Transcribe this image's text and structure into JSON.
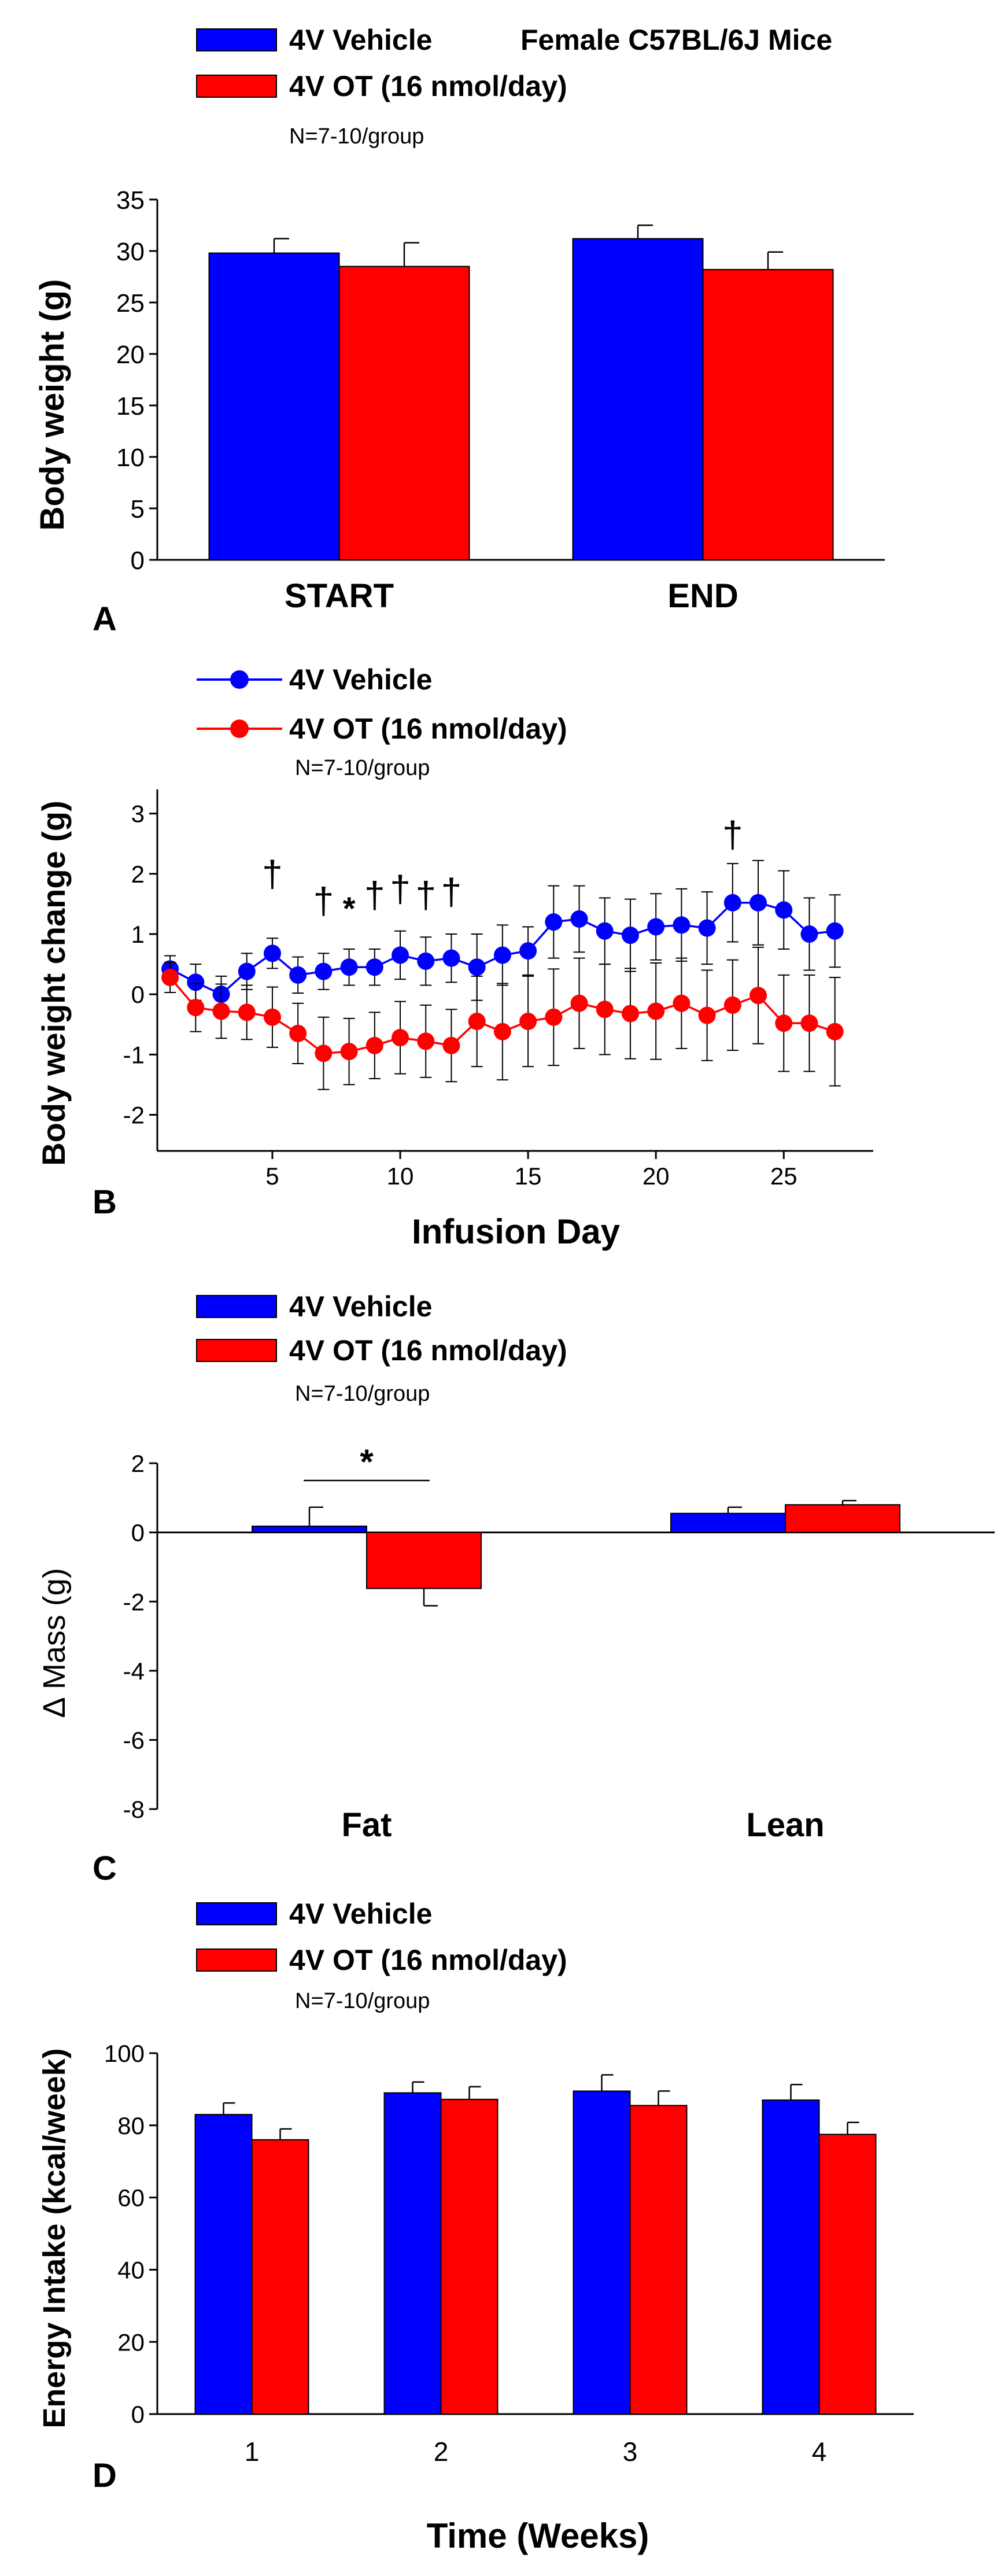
{
  "colors": {
    "vehicle": "#0000FF",
    "ot": "#FF0000",
    "ink": "#000000"
  },
  "chart_data": [
    {
      "id": "A",
      "type": "bar",
      "panel_label": "A",
      "legend": [
        "4V Vehicle",
        "4V OT (16 nmol/day)"
      ],
      "title": "Female C57BL/6J Mice",
      "subtitle": "N=7-10/group",
      "ylabel": "Body weight (g)",
      "xlabel": "",
      "ylim": [
        0,
        35
      ],
      "yticks": [
        0,
        5,
        10,
        15,
        20,
        25,
        30,
        35
      ],
      "categories": [
        "START",
        "END"
      ],
      "series": [
        {
          "name": "4V Vehicle",
          "values": [
            29.8,
            31.2
          ],
          "errors": [
            1.4,
            1.3
          ]
        },
        {
          "name": "4V OT (16 nmol/day)",
          "values": [
            28.5,
            28.2
          ],
          "errors": [
            2.3,
            1.7
          ]
        }
      ]
    },
    {
      "id": "B",
      "type": "line",
      "panel_label": "B",
      "legend": [
        "4V Vehicle",
        "4V OT (16 nmol/day)"
      ],
      "subtitle": "N=7-10/group",
      "ylabel": "Body weight change (g)",
      "xlabel": "Infusion Day",
      "xlim": [
        0.5,
        28.5
      ],
      "ylim": [
        -2.6,
        3.4
      ],
      "xticks": [
        5,
        10,
        15,
        20,
        25
      ],
      "yticks": [
        -2,
        -1,
        0,
        1,
        2,
        3
      ],
      "x": [
        1,
        2,
        3,
        4,
        5,
        6,
        7,
        8,
        9,
        10,
        11,
        12,
        13,
        14,
        15,
        16,
        17,
        18,
        19,
        20,
        21,
        22,
        23,
        24,
        25,
        26,
        27
      ],
      "series": [
        {
          "name": "4V Vehicle",
          "values": [
            0.42,
            0.2,
            0.0,
            0.38,
            0.68,
            0.32,
            0.38,
            0.45,
            0.45,
            0.65,
            0.55,
            0.6,
            0.45,
            0.65,
            0.72,
            1.2,
            1.25,
            1.05,
            0.98,
            1.12,
            1.15,
            1.1,
            1.52,
            1.52,
            1.4,
            1.0,
            1.05
          ],
          "errors": [
            0.22,
            0.3,
            0.3,
            0.3,
            0.25,
            0.3,
            0.3,
            0.3,
            0.3,
            0.4,
            0.4,
            0.4,
            0.55,
            0.5,
            0.4,
            0.6,
            0.55,
            0.55,
            0.6,
            0.55,
            0.6,
            0.6,
            0.65,
            0.7,
            0.65,
            0.6,
            0.6
          ]
        },
        {
          "name": "4V OT (16 nmol/day)",
          "values": [
            0.28,
            -0.22,
            -0.28,
            -0.3,
            -0.38,
            -0.65,
            -0.98,
            -0.95,
            -0.85,
            -0.72,
            -0.78,
            -0.85,
            -0.45,
            -0.62,
            -0.45,
            -0.38,
            -0.15,
            -0.25,
            -0.32,
            -0.28,
            -0.15,
            -0.35,
            -0.18,
            -0.02,
            -0.48,
            -0.48,
            -0.62
          ],
          "errors": [
            0.25,
            0.4,
            0.45,
            0.45,
            0.5,
            0.5,
            0.6,
            0.55,
            0.55,
            0.6,
            0.6,
            0.6,
            0.75,
            0.8,
            0.75,
            0.8,
            0.75,
            0.75,
            0.75,
            0.8,
            0.75,
            0.75,
            0.75,
            0.8,
            0.8,
            0.8,
            0.9
          ]
        }
      ],
      "annotations": [
        {
          "text": "†",
          "x": 5,
          "y": 2.0
        },
        {
          "text": "†",
          "x": 7,
          "y": 1.55
        },
        {
          "text": "*",
          "x": 8,
          "y": 1.45
        },
        {
          "text": "†",
          "x": 9,
          "y": 1.65
        },
        {
          "text": "†",
          "x": 10,
          "y": 1.75
        },
        {
          "text": "†",
          "x": 11,
          "y": 1.65
        },
        {
          "text": "†",
          "x": 12,
          "y": 1.7
        },
        {
          "text": "†",
          "x": 23,
          "y": 2.65
        }
      ]
    },
    {
      "id": "C",
      "type": "bar",
      "panel_label": "C",
      "legend": [
        "4V Vehicle",
        "4V OT (16 nmol/day)"
      ],
      "subtitle": "N=7-10/group",
      "ylabel": "∆ Mass (g)",
      "xlabel": "",
      "ylim": [
        -8,
        2
      ],
      "yticks": [
        -8,
        -6,
        -4,
        -2,
        0,
        2
      ],
      "categories": [
        "Fat",
        "Lean"
      ],
      "series": [
        {
          "name": "4V Vehicle",
          "values": [
            0.18,
            0.55
          ],
          "errors": [
            0.55,
            0.18
          ]
        },
        {
          "name": "4V OT (16 nmol/day)",
          "values": [
            -1.62,
            0.8
          ],
          "errors": [
            0.5,
            0.12
          ]
        }
      ],
      "annotations": [
        {
          "text": "*",
          "category": "Fat",
          "y": 1.5
        }
      ]
    },
    {
      "id": "D",
      "type": "bar",
      "panel_label": "D",
      "legend": [
        "4V Vehicle",
        "4V OT (16 nmol/day)"
      ],
      "subtitle": "N=7-10/group",
      "ylabel": "Energy Intake (kcal/week)",
      "xlabel": "Time (Weeks)",
      "ylim": [
        0,
        100
      ],
      "yticks": [
        0,
        20,
        40,
        60,
        80,
        100
      ],
      "categories": [
        "1",
        "2",
        "3",
        "4"
      ],
      "series": [
        {
          "name": "4V Vehicle",
          "values": [
            83,
            89,
            89.5,
            87
          ],
          "errors": [
            3.2,
            3.0,
            4.5,
            4.3
          ]
        },
        {
          "name": "4V OT (16 nmol/day)",
          "values": [
            76,
            87.2,
            85.5,
            77.5
          ],
          "errors": [
            3.0,
            3.5,
            4.0,
            3.3
          ]
        }
      ]
    }
  ]
}
